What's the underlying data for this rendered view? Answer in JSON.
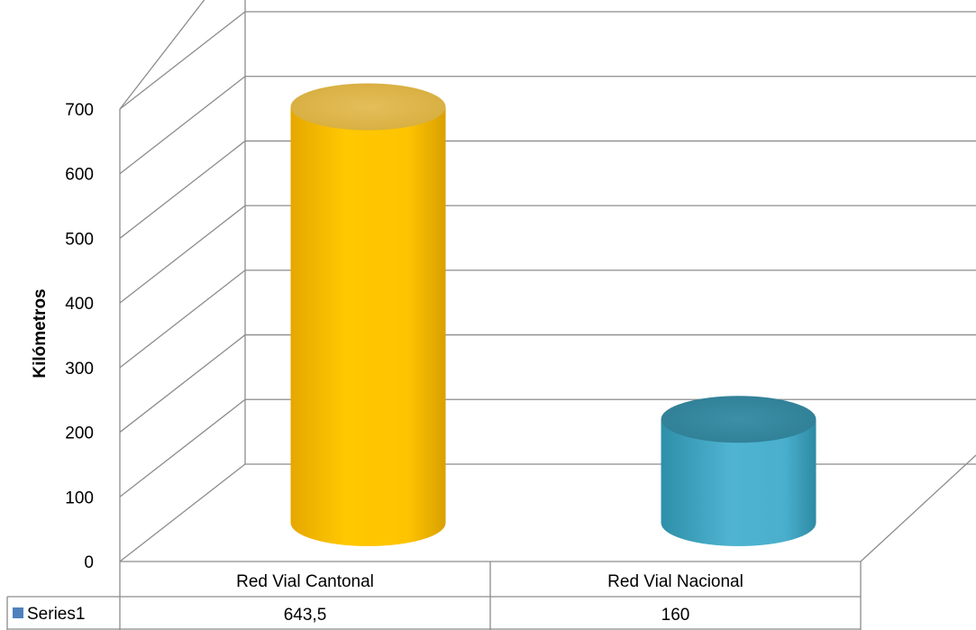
{
  "chart_data": {
    "type": "bar",
    "style": "3d-cylinder",
    "categories": [
      "Red Vial Cantonal",
      "Red Vial Nacional"
    ],
    "series": [
      {
        "name": "Series1",
        "values": [
          643.5,
          160
        ],
        "value_labels": [
          "643,5",
          "160"
        ]
      }
    ],
    "point_colors": [
      "#FFC000",
      "#4BACC6"
    ],
    "series_marker_color": "#4F81BD",
    "ylabel": "Kilómetros",
    "ylim": [
      0,
      700
    ],
    "yticks": [
      0,
      100,
      200,
      300,
      400,
      500,
      600,
      700
    ],
    "grid": true,
    "legend": "data-table"
  }
}
